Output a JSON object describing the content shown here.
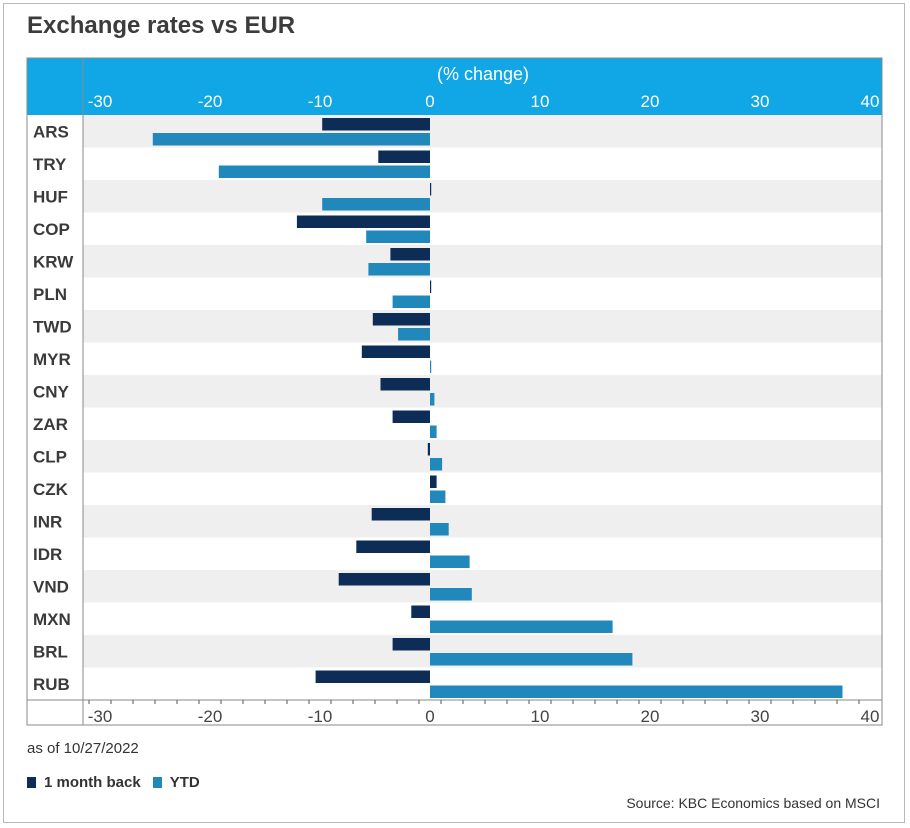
{
  "title": "Exchange rates vs EUR",
  "as_of": "as of 10/27/2022",
  "source": "Source: KBC Economics based on MSCI",
  "colors": {
    "header_band": "#11a6e6",
    "month_bar": "#0e2d56",
    "ytd_bar": "#2188bb",
    "row_shade": "#efefef"
  },
  "chart_data": {
    "type": "bar",
    "orientation": "horizontal",
    "title": "Exchange rates vs EUR",
    "xlabel": "(% change)",
    "xlim": [
      -35,
      41
    ],
    "xticks": [
      -30,
      -20,
      -10,
      0,
      10,
      20,
      30,
      40
    ],
    "categories": [
      "ARS",
      "TRY",
      "HUF",
      "COP",
      "KRW",
      "PLN",
      "TWD",
      "MYR",
      "CNY",
      "ZAR",
      "CLP",
      "CZK",
      "INR",
      "IDR",
      "VND",
      "MXN",
      "BRL",
      "RUB"
    ],
    "series": [
      {
        "name": "1 month back",
        "color": "#0e2d56",
        "values": [
          -9.8,
          -4.7,
          0.1,
          -12.1,
          -3.6,
          0.1,
          -5.2,
          -6.2,
          -4.5,
          -3.4,
          -0.2,
          0.6,
          -5.3,
          -6.7,
          -8.3,
          -1.7,
          -3.4,
          -10.4
        ]
      },
      {
        "name": "YTD",
        "color": "#2188bb",
        "values": [
          -25.2,
          -19.2,
          -9.8,
          -5.8,
          -5.6,
          -3.4,
          -2.9,
          0.0,
          0.4,
          0.6,
          1.1,
          1.4,
          1.7,
          3.6,
          3.8,
          16.6,
          18.4,
          37.5
        ]
      }
    ],
    "grid": false,
    "legend": "bottom-left"
  }
}
